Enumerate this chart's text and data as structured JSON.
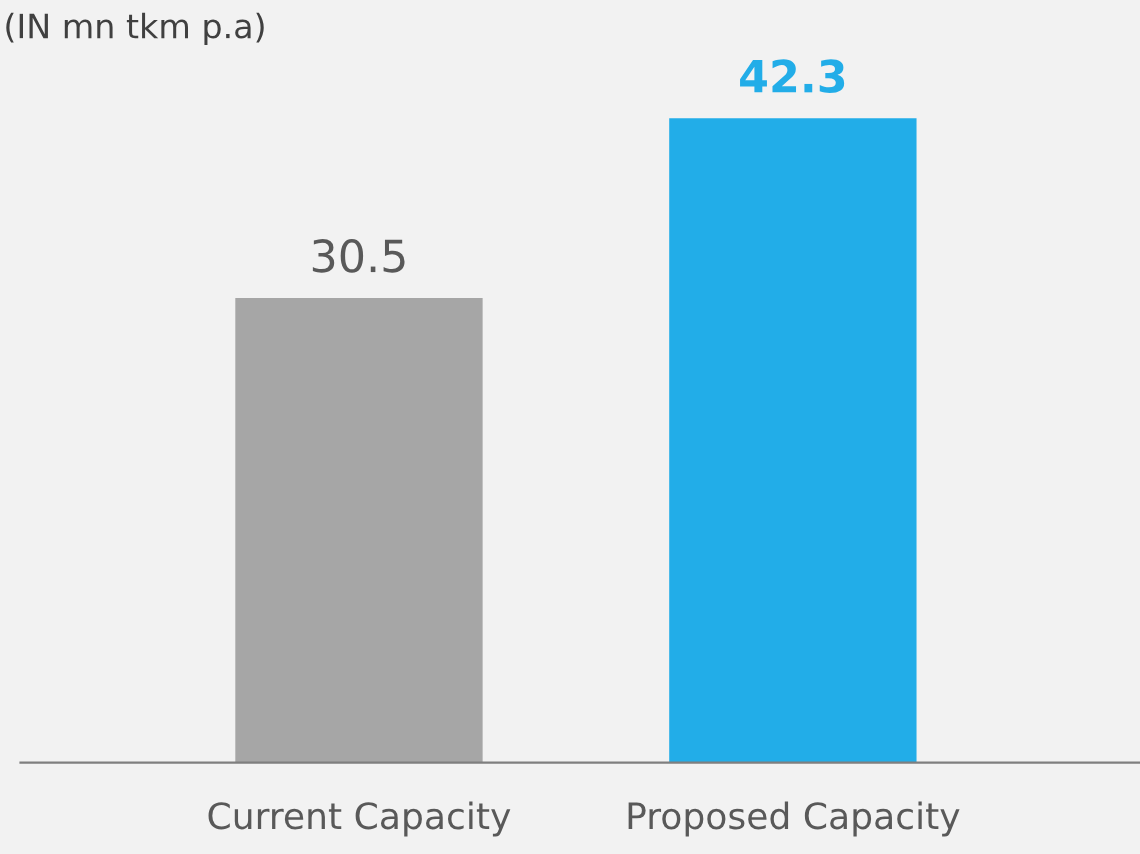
{
  "chart_data": {
    "type": "bar",
    "title": "(IN mn tkm p.a)",
    "categories": [
      "Current Capacity",
      "Proposed Capacity"
    ],
    "values": [
      30.5,
      42.3
    ],
    "colors": [
      "#a6a6a6",
      "#22ade8"
    ],
    "data_labels": true,
    "grid": false,
    "tick_labels": "x"
  }
}
